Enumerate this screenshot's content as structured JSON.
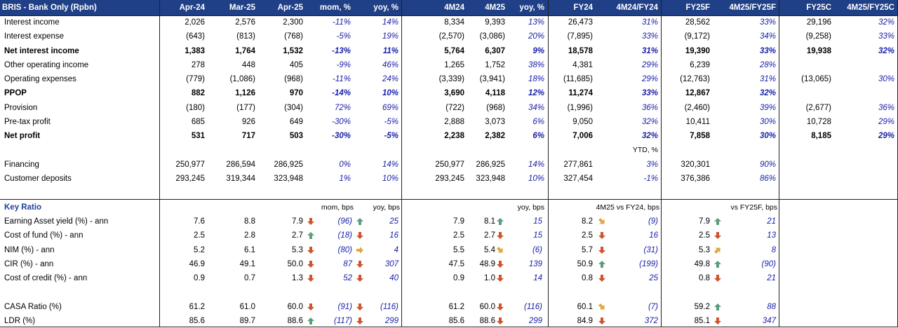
{
  "header": [
    "BRIS - Bank Only (Rpbn)",
    "Apr-24",
    "Mar-25",
    "Apr-25",
    "mom, %",
    "yoy, %",
    "4M24",
    "4M25",
    "yoy, %",
    "FY24",
    "4M24/FY24",
    "FY25F",
    "4M25/FY25F",
    "FY25C",
    "4M25/FY25C"
  ],
  "pnl": [
    {
      "label": "Interest income",
      "bold": false,
      "v": [
        "2,026",
        "2,576",
        "2,300",
        "-11%",
        "14%",
        "8,334",
        "9,393",
        "13%",
        "26,473",
        "31%",
        "28,562",
        "33%",
        "29,196",
        "32%"
      ]
    },
    {
      "label": "Interest expense",
      "bold": false,
      "v": [
        "(643)",
        "(813)",
        "(768)",
        "-5%",
        "19%",
        "(2,570)",
        "(3,086)",
        "20%",
        "(7,895)",
        "33%",
        "(9,172)",
        "34%",
        "(9,258)",
        "33%"
      ]
    },
    {
      "label": "Net interest income",
      "bold": true,
      "v": [
        "1,383",
        "1,764",
        "1,532",
        "-13%",
        "11%",
        "5,764",
        "6,307",
        "9%",
        "18,578",
        "31%",
        "19,390",
        "33%",
        "19,938",
        "32%"
      ]
    },
    {
      "label": "Other operating income",
      "bold": false,
      "v": [
        "278",
        "448",
        "405",
        "-9%",
        "46%",
        "1,265",
        "1,752",
        "38%",
        "4,381",
        "29%",
        "6,239",
        "28%",
        "",
        ""
      ]
    },
    {
      "label": "Operating expenses",
      "bold": false,
      "v": [
        "(779)",
        "(1,086)",
        "(968)",
        "-11%",
        "24%",
        "(3,339)",
        "(3,941)",
        "18%",
        "(11,685)",
        "29%",
        "(12,763)",
        "31%",
        "(13,065)",
        "30%"
      ]
    },
    {
      "label": "PPOP",
      "bold": true,
      "v": [
        "882",
        "1,126",
        "970",
        "-14%",
        "10%",
        "3,690",
        "4,118",
        "12%",
        "11,274",
        "33%",
        "12,867",
        "32%",
        "",
        ""
      ]
    },
    {
      "label": "Provision",
      "bold": false,
      "v": [
        "(180)",
        "(177)",
        "(304)",
        "72%",
        "69%",
        "(722)",
        "(968)",
        "34%",
        "(1,996)",
        "36%",
        "(2,460)",
        "39%",
        "(2,677)",
        "36%"
      ]
    },
    {
      "label": "Pre-tax profit",
      "bold": false,
      "v": [
        "685",
        "926",
        "649",
        "-30%",
        "-5%",
        "2,888",
        "3,073",
        "6%",
        "9,050",
        "32%",
        "10,411",
        "30%",
        "10,728",
        "29%"
      ]
    },
    {
      "label": "Net profit",
      "bold": true,
      "v": [
        "531",
        "717",
        "503",
        "-30%",
        "-5%",
        "2,238",
        "2,382",
        "6%",
        "7,006",
        "32%",
        "7,858",
        "30%",
        "8,185",
        "29%"
      ]
    }
  ],
  "ytd_label": "YTD, %",
  "balance": [
    {
      "label": "Financing",
      "v": [
        "250,977",
        "286,594",
        "286,925",
        "0%",
        "14%",
        "250,977",
        "286,925",
        "14%",
        "277,861",
        "3%",
        "320,301",
        "90%",
        "",
        ""
      ]
    },
    {
      "label": "Customer deposits",
      "v": [
        "293,245",
        "319,344",
        "323,948",
        "1%",
        "10%",
        "293,245",
        "323,948",
        "10%",
        "327,454",
        "-1%",
        "376,386",
        "86%",
        "",
        ""
      ]
    }
  ],
  "key_ratio": {
    "title": "Key Ratio",
    "sub_mom": "mom, bps",
    "sub_yoy": "yoy, bps",
    "sub_yoy2": "yoy, bps",
    "sub_fy24": "4M25 vs FY24, bps",
    "sub_fy25": "vs FY25F, bps",
    "rows": [
      {
        "label": "Earning Asset yield (%) - ann",
        "v": [
          "7.6",
          "8.8",
          "7.9",
          "(96)",
          "25",
          "7.9",
          "8.1",
          "15",
          "8.2",
          "(9)",
          "7.9",
          "21"
        ],
        "a": [
          "down",
          "up",
          "",
          "up",
          "down-right",
          "",
          "up"
        ]
      },
      {
        "label": "Cost of fund (%) - ann",
        "v": [
          "2.5",
          "2.8",
          "2.7",
          "(18)",
          "16",
          "2.5",
          "2.7",
          "15",
          "2.5",
          "16",
          "2.5",
          "13"
        ],
        "a": [
          "up",
          "down",
          "",
          "down",
          "down",
          "",
          "down"
        ]
      },
      {
        "label": "NIM (%) - ann",
        "v": [
          "5.2",
          "6.1",
          "5.3",
          "(80)",
          "4",
          "5.5",
          "5.4",
          "(6)",
          "5.7",
          "(31)",
          "5.3",
          "8"
        ],
        "a": [
          "down",
          "right",
          "",
          "down-right",
          "down",
          "",
          "up-right"
        ]
      },
      {
        "label": "CIR (%) - ann",
        "v": [
          "46.9",
          "49.1",
          "50.0",
          "87",
          "307",
          "47.5",
          "48.9",
          "139",
          "50.9",
          "(199)",
          "49.8",
          "(90)"
        ],
        "a": [
          "down",
          "down",
          "",
          "down",
          "up",
          "",
          "up"
        ]
      },
      {
        "label": "Cost of credit (%) - ann",
        "v": [
          "0.9",
          "0.7",
          "1.3",
          "52",
          "40",
          "0.9",
          "1.0",
          "14",
          "0.8",
          "25",
          "0.8",
          "21"
        ],
        "a": [
          "down",
          "down",
          "",
          "down",
          "down",
          "",
          "down"
        ]
      }
    ],
    "rows2": [
      {
        "label": "CASA Ratio (%)",
        "v": [
          "61.2",
          "61.0",
          "60.0",
          "(91)",
          "(116)",
          "61.2",
          "60.0",
          "(116)",
          "60.1",
          "(7)",
          "59.2",
          "88"
        ],
        "a": [
          "down",
          "down",
          "",
          "down",
          "down-right",
          "",
          "up"
        ]
      },
      {
        "label": "LDR (%)",
        "v": [
          "85.6",
          "89.7",
          "88.6",
          "(117)",
          "299",
          "85.6",
          "88.6",
          "299",
          "84.9",
          "372",
          "85.1",
          "347"
        ],
        "a": [
          "up",
          "down",
          "",
          "down",
          "down",
          "",
          "down"
        ]
      }
    ]
  },
  "colors": {
    "header_bg": "#1f3f86",
    "pct": "#1a21a8",
    "arrow_green": "#5b9e7a",
    "arrow_red": "#d0532b",
    "arrow_yellow": "#e0a840"
  }
}
